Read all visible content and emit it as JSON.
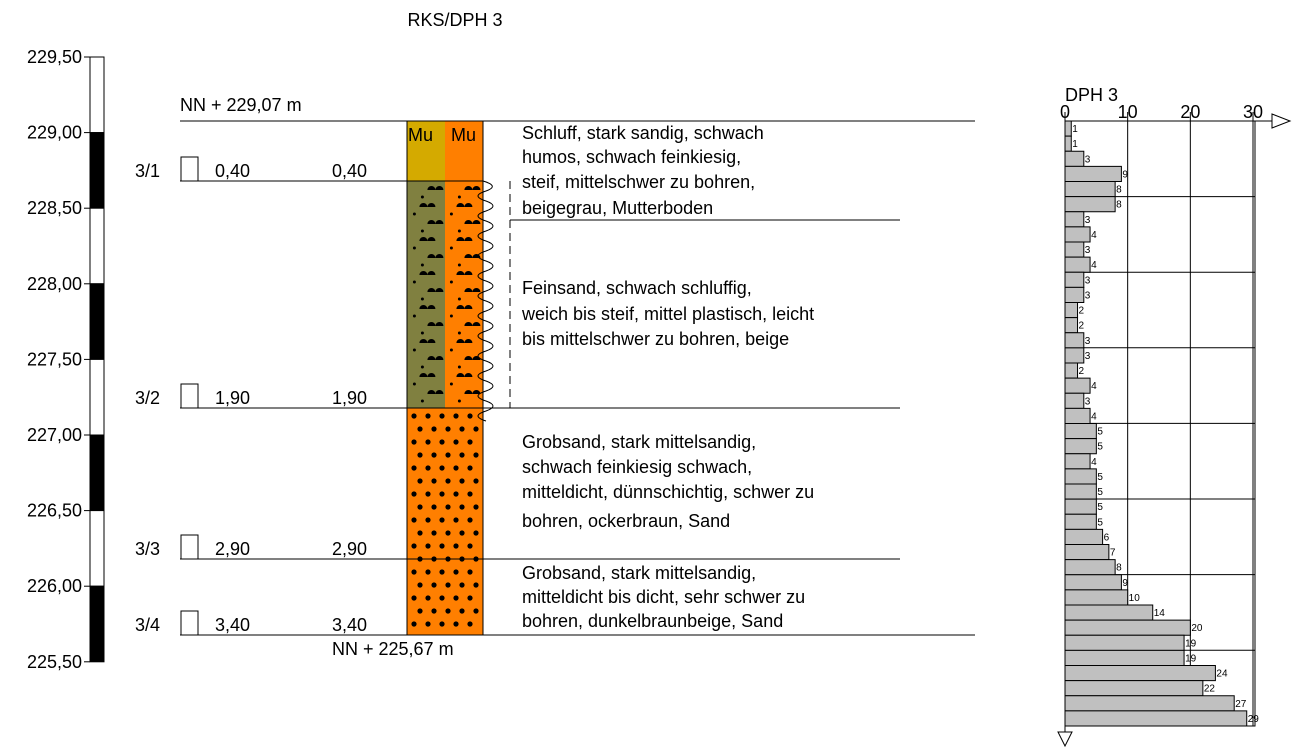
{
  "title": "RKS/DPH 3",
  "elevation_axis": {
    "ticks": [
      "229,50",
      "229,00",
      "228,50",
      "228,00",
      "227,50",
      "227,00",
      "226,50",
      "226,00",
      "225,50"
    ]
  },
  "top_level": "NN + 229,07 m",
  "bottom_level": "NN + 225,67 m",
  "samples": [
    {
      "id": "3/1",
      "depth_left": "0,40",
      "depth_right": "0,40"
    },
    {
      "id": "3/2",
      "depth_left": "1,90",
      "depth_right": "1,90"
    },
    {
      "id": "3/3",
      "depth_left": "2,90",
      "depth_right": "2,90"
    },
    {
      "id": "3/4",
      "depth_left": "3,40",
      "depth_right": "3,40"
    }
  ],
  "layers": [
    {
      "symbol": "Mu",
      "description": [
        "Schluff, stark sandig, schwach",
        "humos, schwach feinkiesig,",
        "steif, mittelschwer zu bohren,",
        "beigegrau, Mutterboden"
      ]
    },
    {
      "description": [
        "Feinsand, schwach schluffig,",
        "weich bis steif, mittel plastisch, leicht",
        "bis mittelschwer zu bohren, beige"
      ]
    },
    {
      "description": [
        "Grobsand, stark mittelsandig,",
        "schwach feinkiesig schwach,",
        "mitteldicht, dünnschichtig, schwer zu",
        "bohren, ockerbraun, Sand"
      ]
    },
    {
      "description": [
        "Grobsand, stark mittelsandig,",
        "mitteldicht bis dicht, sehr schwer zu",
        "bohren, dunkelbraunbeige, Sand"
      ]
    }
  ],
  "dph": {
    "title": "DPH 3",
    "xlim": [
      0,
      30
    ],
    "xticks": [
      0,
      10,
      20,
      30
    ],
    "values": [
      1,
      1,
      3,
      9,
      8,
      8,
      3,
      4,
      3,
      4,
      3,
      3,
      2,
      2,
      3,
      3,
      2,
      4,
      3,
      4,
      5,
      5,
      4,
      5,
      5,
      5,
      5,
      6,
      7,
      8,
      9,
      10,
      14,
      20,
      19,
      19,
      24,
      22,
      27,
      29
    ],
    "color": "#c0c0c0"
  }
}
